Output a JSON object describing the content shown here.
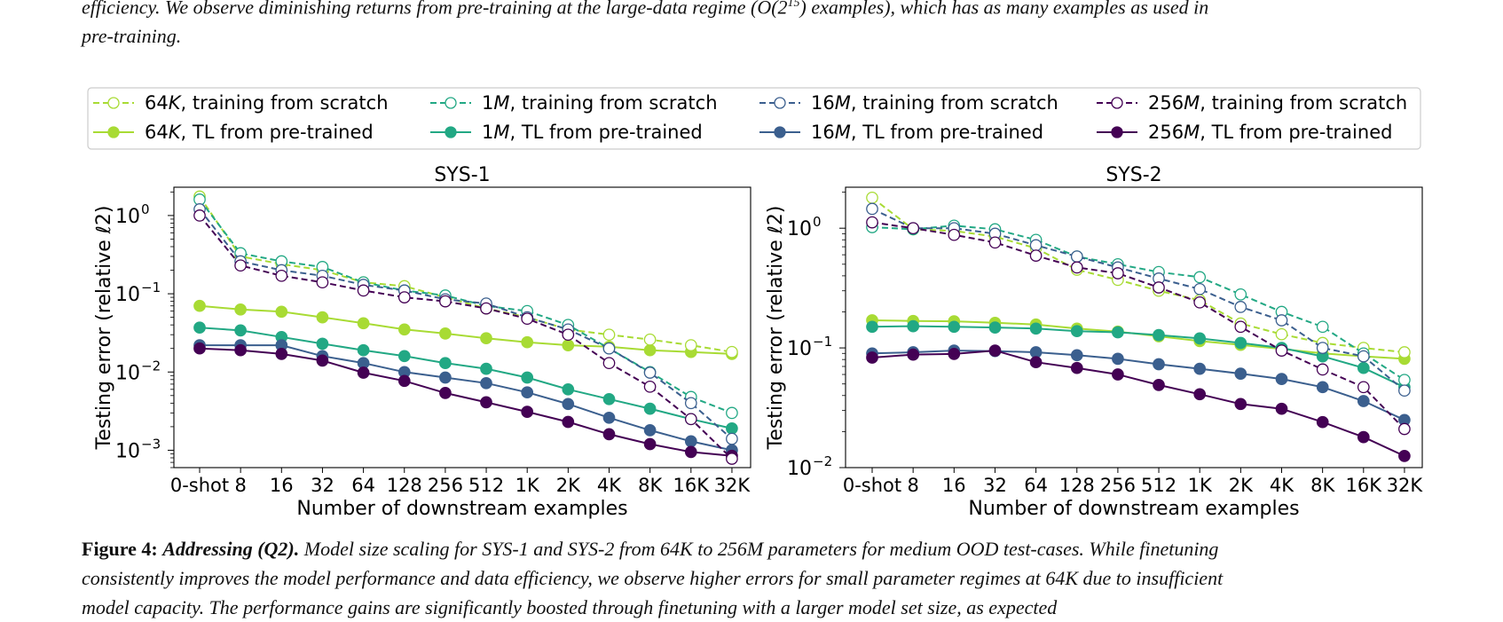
{
  "top_text": {
    "line1": "efficiency. We observe diminishing returns from pre-training at the large-data regime (O(2",
    "line1_sup": "15",
    "line1_end": ") examples), which has as many examples as used in",
    "line2": "pre-training."
  },
  "caption": {
    "label": "Figure 4:",
    "title": "Addressing (Q2).",
    "line1": "Model size scaling for SYS-1 and SYS-2 from 64K to 256M parameters for medium OOD test-cases. While finetuning",
    "line2": "consistently improves the model performance and data efficiency, we observe higher errors for small parameter regimes at 64K due to insufficient",
    "line3": "model capacity. The performance gains are significantly boosted through finetuning with a larger model set size, as expected"
  },
  "legend": {
    "entries": [
      {
        "size": "64",
        "unit": "K",
        "rest": ", training from scratch",
        "color": "#a8db34",
        "kind": "scratch"
      },
      {
        "size": "1",
        "unit": "M",
        "rest": ", training from scratch",
        "color": "#22a884",
        "kind": "scratch"
      },
      {
        "size": "16",
        "unit": "M",
        "rest": ", training from scratch",
        "color": "#3b5f8e",
        "kind": "scratch"
      },
      {
        "size": "256",
        "unit": "M",
        "rest": ", training from scratch",
        "color": "#440154",
        "kind": "scratch"
      },
      {
        "size": "64",
        "unit": "K",
        "rest": ", TL from pre-trained",
        "color": "#a8db34",
        "kind": "tl"
      },
      {
        "size": "1",
        "unit": "M",
        "rest": ", TL from pre-trained",
        "color": "#22a884",
        "kind": "tl"
      },
      {
        "size": "16",
        "unit": "M",
        "rest": ", TL from pre-trained",
        "color": "#3b5f8e",
        "kind": "tl"
      },
      {
        "size": "256",
        "unit": "M",
        "rest": ", TL from pre-trained",
        "color": "#440154",
        "kind": "tl"
      }
    ]
  },
  "chart_data": [
    {
      "type": "line",
      "title": "SYS-1",
      "xlabel": "Number of downstream examples",
      "ylabel": "Testing error (relative ℓ2)",
      "yscale": "log",
      "ylim": [
        0.0006,
        2.3
      ],
      "yticks": [
        {
          "value": 1,
          "exp": "0"
        },
        {
          "value": 0.1,
          "exp": "−1"
        },
        {
          "value": 0.01,
          "exp": "−2"
        },
        {
          "value": 0.001,
          "exp": "−3"
        }
      ],
      "categories": [
        "0-shot",
        "8",
        "16",
        "32",
        "64",
        "128",
        "256",
        "512",
        "1K",
        "2K",
        "4K",
        "8K",
        "16K",
        "32K"
      ],
      "series": [
        {
          "name": "64K, training from scratch",
          "values": [
            1.75,
            0.3,
            0.24,
            0.2,
            0.14,
            0.125,
            0.09,
            0.065,
            0.05,
            0.035,
            0.03,
            0.026,
            0.022,
            0.018
          ]
        },
        {
          "name": "1M, training from scratch",
          "values": [
            1.6,
            0.33,
            0.26,
            0.22,
            0.14,
            0.11,
            0.095,
            0.07,
            0.06,
            0.04,
            0.02,
            0.01,
            0.0048,
            0.003
          ]
        },
        {
          "name": "16M, training from scratch",
          "values": [
            1.2,
            0.26,
            0.2,
            0.17,
            0.13,
            0.11,
            0.085,
            0.075,
            0.05,
            0.035,
            0.02,
            0.0098,
            0.004,
            0.0014
          ]
        },
        {
          "name": "256M, training from scratch",
          "values": [
            1.0,
            0.23,
            0.17,
            0.14,
            0.11,
            0.09,
            0.08,
            0.065,
            0.048,
            0.03,
            0.013,
            0.0065,
            0.0025,
            0.00078
          ]
        },
        {
          "name": "64K, TL from pre-trained",
          "values": [
            0.07,
            0.063,
            0.059,
            0.05,
            0.042,
            0.035,
            0.031,
            0.027,
            0.024,
            0.022,
            0.021,
            0.019,
            0.018,
            0.017
          ]
        },
        {
          "name": "1M, TL from pre-trained",
          "values": [
            0.037,
            0.034,
            0.028,
            0.023,
            0.019,
            0.016,
            0.013,
            0.011,
            0.0085,
            0.006,
            0.0045,
            0.0034,
            0.0025,
            0.0019
          ]
        },
        {
          "name": "16M, TL from pre-trained",
          "values": [
            0.022,
            0.022,
            0.022,
            0.016,
            0.013,
            0.01,
            0.0085,
            0.0072,
            0.0055,
            0.0039,
            0.0026,
            0.0018,
            0.0013,
            0.001
          ]
        },
        {
          "name": "256M, TL from pre-trained",
          "values": [
            0.02,
            0.019,
            0.017,
            0.014,
            0.0098,
            0.0077,
            0.0054,
            0.0041,
            0.0031,
            0.0023,
            0.0016,
            0.0012,
            0.00095,
            0.00085
          ]
        }
      ]
    },
    {
      "type": "line",
      "title": "SYS-2",
      "xlabel": "Number of downstream examples",
      "ylabel": "Testing error (relative ℓ2)",
      "yscale": "log",
      "ylim": [
        0.01,
        2.2
      ],
      "yticks": [
        {
          "value": 1,
          "exp": "0"
        },
        {
          "value": 0.1,
          "exp": "−1"
        },
        {
          "value": 0.01,
          "exp": "−2"
        }
      ],
      "categories": [
        "0-shot",
        "8",
        "16",
        "32",
        "64",
        "128",
        "256",
        "512",
        "1K",
        "2K",
        "4K",
        "8K",
        "16K",
        "32K"
      ],
      "series": [
        {
          "name": "64K, training from scratch",
          "values": [
            1.8,
            0.98,
            0.95,
            0.85,
            0.68,
            0.45,
            0.37,
            0.3,
            0.25,
            0.16,
            0.13,
            0.11,
            0.1,
            0.092
          ]
        },
        {
          "name": "1M, training from scratch",
          "values": [
            1.02,
            0.98,
            1.05,
            0.98,
            0.8,
            0.58,
            0.5,
            0.43,
            0.39,
            0.28,
            0.2,
            0.15,
            0.09,
            0.054
          ]
        },
        {
          "name": "16M, training from scratch",
          "values": [
            1.45,
            1.0,
            1.0,
            0.9,
            0.72,
            0.58,
            0.47,
            0.38,
            0.31,
            0.22,
            0.17,
            0.1,
            0.085,
            0.044
          ]
        },
        {
          "name": "256M, training from scratch",
          "values": [
            1.12,
            1.0,
            0.88,
            0.76,
            0.59,
            0.47,
            0.42,
            0.32,
            0.24,
            0.15,
            0.095,
            0.066,
            0.047,
            0.021
          ]
        },
        {
          "name": "64K, TL from pre-trained",
          "values": [
            0.17,
            0.168,
            0.167,
            0.162,
            0.157,
            0.145,
            0.137,
            0.125,
            0.114,
            0.106,
            0.098,
            0.09,
            0.085,
            0.081
          ]
        },
        {
          "name": "1M, TL from pre-trained",
          "values": [
            0.15,
            0.152,
            0.15,
            0.148,
            0.145,
            0.138,
            0.135,
            0.128,
            0.12,
            0.11,
            0.1,
            0.085,
            0.068,
            0.047
          ]
        },
        {
          "name": "16M, TL from pre-trained",
          "values": [
            0.09,
            0.092,
            0.095,
            0.094,
            0.092,
            0.087,
            0.081,
            0.073,
            0.067,
            0.061,
            0.055,
            0.047,
            0.036,
            0.025
          ]
        },
        {
          "name": "256M, TL from pre-trained",
          "values": [
            0.083,
            0.088,
            0.089,
            0.095,
            0.076,
            0.068,
            0.06,
            0.049,
            0.041,
            0.034,
            0.031,
            0.024,
            0.018,
            0.0125
          ]
        }
      ]
    }
  ]
}
